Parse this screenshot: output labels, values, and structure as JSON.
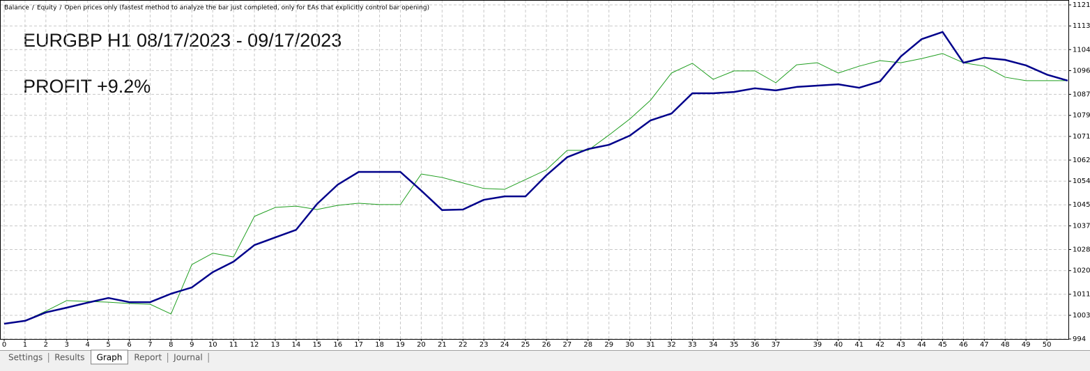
{
  "chart_data": {
    "type": "line",
    "separator": "/",
    "mode_note": "Open prices only (fastest method to analyze the bar just completed, only for EAs that explicitly control bar opening)",
    "mode_note_color": "#ff0000",
    "annotations": [
      "EURGBP H1 08/17/2023 - 09/17/2023",
      "PROFIT +9.2%"
    ],
    "x": [
      0,
      1,
      2,
      3,
      4,
      5,
      6,
      7,
      8,
      9,
      10,
      11,
      12,
      13,
      14,
      15,
      16,
      17,
      18,
      19,
      20,
      21,
      22,
      23,
      24,
      25,
      26,
      27,
      28,
      29,
      30,
      31,
      32,
      33,
      34,
      35,
      36,
      37,
      38,
      39,
      40,
      41,
      42,
      43,
      44,
      45,
      46,
      47,
      48,
      49,
      50,
      51
    ],
    "series": [
      {
        "name": "Balance",
        "color": "#00008b",
        "values": [
          999.8,
          1000.9,
          1004.1,
          1005.9,
          1007.8,
          1009.6,
          1008,
          1008,
          1011.2,
          1013.6,
          1019.4,
          1023.4,
          1029.7,
          1032.6,
          1035.5,
          1045.3,
          1052.7,
          1057.5,
          1057.5,
          1057.5,
          1050.4,
          1043,
          1043.2,
          1046.9,
          1048.2,
          1048.2,
          1056.2,
          1063.1,
          1066.2,
          1067.8,
          1071.3,
          1077.1,
          1079.7,
          1087.4,
          1087.4,
          1087.9,
          1089.3,
          1088.5,
          1089.8,
          1090.3,
          1090.8,
          1089.5,
          1091.9,
          1101.4,
          1108,
          1110.7,
          1099,
          1100.9,
          1100.1,
          1098,
          1094.5,
          1092.2
        ]
      },
      {
        "name": "Equity",
        "color": "#1f9e1f",
        "values": [
          999.8,
          1000.9,
          1004.6,
          1008.6,
          1008.3,
          1008,
          1007.5,
          1007.2,
          1003.5,
          1022.3,
          1026.6,
          1025.2,
          1040.6,
          1044,
          1044.5,
          1043.2,
          1044.8,
          1045.6,
          1045.1,
          1045.1,
          1056.7,
          1055.4,
          1053.3,
          1051.2,
          1050.9,
          1054.6,
          1058.3,
          1065.7,
          1065.7,
          1071.5,
          1077.6,
          1084.8,
          1095.1,
          1098.8,
          1092.7,
          1095.9,
          1095.9,
          1091.4,
          1098.2,
          1099,
          1095.1,
          1097.7,
          1099.8,
          1099,
          1100.6,
          1102.5,
          1099,
          1097.7,
          1093.5,
          1092.2,
          1092.2,
          1092.2
        ]
      }
    ],
    "xlim": [
      0,
      51
    ],
    "xticks": [
      0,
      1,
      2,
      3,
      4,
      5,
      6,
      7,
      8,
      9,
      10,
      11,
      12,
      13,
      14,
      15,
      16,
      17,
      18,
      19,
      20,
      21,
      22,
      23,
      24,
      25,
      26,
      27,
      28,
      29,
      30,
      31,
      32,
      33,
      34,
      35,
      36,
      37,
      39,
      40,
      41,
      42,
      43,
      44,
      45,
      46,
      47,
      48,
      49,
      50
    ],
    "ylim": [
      994,
      1121
    ],
    "yticks": [
      994,
      1003,
      1011,
      1020,
      1028,
      1037,
      1045,
      1054,
      1062,
      1071,
      1079,
      1087,
      1096,
      1104,
      1113,
      1121
    ],
    "grid": true
  },
  "tabs": {
    "items": [
      "Settings",
      "Results",
      "Graph",
      "Report",
      "Journal"
    ],
    "selected": 2
  }
}
